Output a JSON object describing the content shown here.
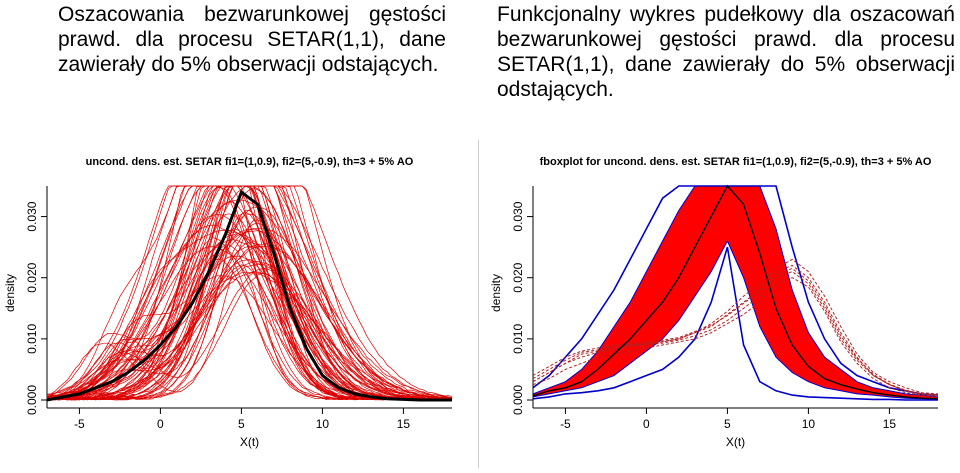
{
  "captions": {
    "left": "Oszacowania bezwarunkowej gęstości prawd. dla procesu SETAR(1,1), dane zawierały do 5% obserwacji odstających.",
    "right": "Funkcjonalny wykres pudełkowy dla oszacowań bezwarunkowej gęstości prawd. dla procesu SETAR(1,1), dane zawierały do 5% obserwacji odstających."
  },
  "colors": {
    "curves": "#dd0000",
    "mean": "#000000",
    "band": "#ff0000",
    "envelope": "#0000cc",
    "outliers": "#b22222"
  },
  "chart_data": [
    {
      "type": "line",
      "title": "uncond. dens. est. SETAR fi1=(1,0.9), fi2=(5,-0.9), th=3 + 5% AO",
      "xlabel": "X(t)",
      "ylabel": "density",
      "xlim": [
        -7,
        18
      ],
      "ylim": [
        0,
        0.035
      ],
      "xticks": [
        -5,
        0,
        5,
        10,
        15
      ],
      "yticks": [
        0.0,
        0.01,
        0.02,
        0.03
      ],
      "ytick_labels": [
        "0.000",
        "0.010",
        "0.020",
        "0.030"
      ],
      "x": [
        -7,
        -6,
        -5,
        -4,
        -3,
        -2,
        -1,
        0,
        1,
        2,
        3,
        4,
        5,
        6,
        7,
        8,
        9,
        10,
        11,
        12,
        13,
        14,
        15,
        16,
        17,
        18
      ],
      "series": [
        {
          "role": "individual curves (many)",
          "values_center_range": [
            3,
            6.5
          ]
        },
        {
          "role": "mean",
          "values": [
            0.0,
            0.0005,
            0.001,
            0.002,
            0.003,
            0.0045,
            0.0065,
            0.009,
            0.012,
            0.016,
            0.021,
            0.027,
            0.034,
            0.032,
            0.024,
            0.015,
            0.0085,
            0.004,
            0.002,
            0.001,
            0.0005,
            0.0002,
            0.0001,
            0.0,
            0.0,
            0.0
          ]
        }
      ],
      "grid": false
    },
    {
      "type": "line",
      "title": "fboxplot for uncond. dens. est. SETAR fi1=(1,0.9), fi2=(5,-0.9), th=3 + 5% AO",
      "xlabel": "X(t)",
      "ylabel": "density",
      "xlim": [
        -7,
        18
      ],
      "ylim": [
        0,
        0.035
      ],
      "xticks": [
        -5,
        0,
        5,
        10,
        15
      ],
      "yticks": [
        0.0,
        0.01,
        0.02,
        0.03
      ],
      "ytick_labels": [
        "0.000",
        "0.010",
        "0.020",
        "0.030"
      ],
      "x": [
        -7,
        -6,
        -5,
        -4,
        -3,
        -2,
        -1,
        0,
        1,
        2,
        3,
        4,
        5,
        6,
        7,
        8,
        9,
        10,
        11,
        12,
        13,
        14,
        15,
        16,
        17,
        18
      ],
      "band_lower": [
        0.0005,
        0.001,
        0.0015,
        0.002,
        0.003,
        0.004,
        0.006,
        0.008,
        0.01,
        0.013,
        0.017,
        0.021,
        0.026,
        0.02,
        0.012,
        0.007,
        0.0045,
        0.003,
        0.002,
        0.0015,
        0.001,
        0.0008,
        0.0005,
        0.0003,
        0.0002,
        0.0001
      ],
      "band_upper": [
        0.001,
        0.002,
        0.003,
        0.005,
        0.008,
        0.012,
        0.016,
        0.021,
        0.026,
        0.031,
        0.035,
        0.036,
        0.036,
        0.036,
        0.035,
        0.028,
        0.018,
        0.011,
        0.007,
        0.005,
        0.003,
        0.002,
        0.0015,
        0.001,
        0.0008,
        0.0005
      ],
      "median": [
        0.0007,
        0.0015,
        0.002,
        0.003,
        0.005,
        0.0075,
        0.01,
        0.013,
        0.016,
        0.02,
        0.025,
        0.03,
        0.035,
        0.032,
        0.024,
        0.015,
        0.009,
        0.0055,
        0.0035,
        0.0025,
        0.0018,
        0.0012,
        0.0008,
        0.0005,
        0.0003,
        0.0002
      ],
      "envelope_upper": [
        0.002,
        0.004,
        0.007,
        0.01,
        0.014,
        0.018,
        0.023,
        0.028,
        0.033,
        0.036,
        0.036,
        0.036,
        0.036,
        0.036,
        0.036,
        0.035,
        0.025,
        0.016,
        0.01,
        0.006,
        0.004,
        0.003,
        0.002,
        0.0015,
        0.001,
        0.0008
      ],
      "envelope_lower": [
        0.0002,
        0.0005,
        0.001,
        0.0012,
        0.0015,
        0.002,
        0.003,
        0.004,
        0.005,
        0.007,
        0.01,
        0.016,
        0.025,
        0.009,
        0.003,
        0.0015,
        0.0008,
        0.0005,
        0.0004,
        0.0003,
        0.0002,
        0.0001,
        0.0001,
        0.0,
        0.0,
        0.0
      ],
      "outliers": [
        [
          0.003,
          0.0045,
          0.006,
          0.0075,
          0.008,
          0.0085,
          0.009,
          0.0092,
          0.0095,
          0.01,
          0.011,
          0.012,
          0.014,
          0.016,
          0.018,
          0.021,
          0.022,
          0.02,
          0.016,
          0.011,
          0.007,
          0.004,
          0.0025,
          0.0015,
          0.001,
          0.0008
        ],
        [
          0.003,
          0.0045,
          0.006,
          0.007,
          0.0078,
          0.0083,
          0.0088,
          0.009,
          0.0093,
          0.0098,
          0.0105,
          0.0115,
          0.013,
          0.015,
          0.017,
          0.02,
          0.021,
          0.019,
          0.015,
          0.01,
          0.0065,
          0.004,
          0.0025,
          0.0015,
          0.001,
          0.0008
        ],
        [
          0.004,
          0.0055,
          0.007,
          0.008,
          0.0085,
          0.009,
          0.009,
          0.0092,
          0.0096,
          0.01,
          0.011,
          0.0125,
          0.0145,
          0.017,
          0.019,
          0.0215,
          0.023,
          0.021,
          0.017,
          0.012,
          0.0075,
          0.0045,
          0.003,
          0.002,
          0.0012,
          0.001
        ],
        [
          0.0025,
          0.0035,
          0.005,
          0.006,
          0.007,
          0.0075,
          0.008,
          0.0085,
          0.009,
          0.0095,
          0.01,
          0.011,
          0.0125,
          0.014,
          0.016,
          0.019,
          0.02,
          0.0185,
          0.0145,
          0.0095,
          0.006,
          0.0035,
          0.002,
          0.0012,
          0.0008,
          0.0006
        ],
        [
          0.0035,
          0.005,
          0.0065,
          0.0078,
          0.0082,
          0.0088,
          0.0092,
          0.0095,
          0.0098,
          0.0102,
          0.0112,
          0.0122,
          0.0138,
          0.0158,
          0.0178,
          0.0205,
          0.0215,
          0.0195,
          0.0155,
          0.0105,
          0.0068,
          0.0042,
          0.0026,
          0.0016,
          0.001,
          0.0008
        ]
      ],
      "grid": false
    }
  ]
}
